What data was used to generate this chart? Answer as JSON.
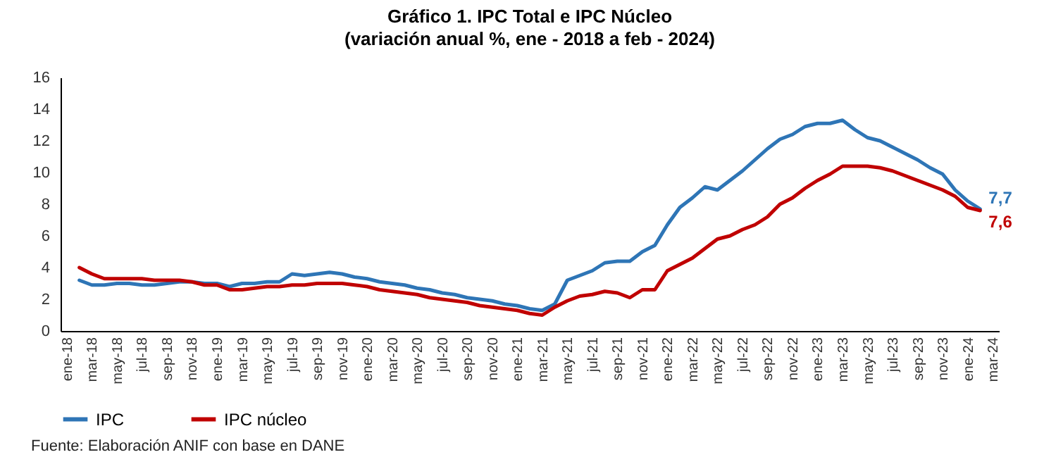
{
  "chart_data": {
    "type": "line",
    "title": "Gráfico 1. IPC Total e IPC Núcleo",
    "subtitle": "(variación anual %, ene - 2018 a feb - 2024)",
    "categories": [
      "ene-18",
      null,
      "mar-18",
      null,
      "may-18",
      null,
      "jul-18",
      null,
      "sep-18",
      null,
      "nov-18",
      null,
      "ene-19",
      null,
      "mar-19",
      null,
      "may-19",
      null,
      "jul-19",
      null,
      "sep-19",
      null,
      "nov-19",
      null,
      "ene-20",
      null,
      "mar-20",
      null,
      "may-20",
      null,
      "jul-20",
      null,
      "sep-20",
      null,
      "nov-20",
      null,
      "ene-21",
      null,
      "mar-21",
      null,
      "may-21",
      null,
      "jul-21",
      null,
      "sep-21",
      null,
      "nov-21",
      null,
      "ene-22",
      null,
      "mar-22",
      null,
      "may-22",
      null,
      "jul-22",
      null,
      "sep-22",
      null,
      "nov-22",
      null,
      "ene-23",
      null,
      "mar-23",
      null,
      "may-23",
      null,
      "jul-23",
      null,
      "sep-23",
      null,
      "nov-23",
      null,
      "ene-24",
      null,
      "mar-24"
    ],
    "series": [
      {
        "name": "IPC",
        "color": "#2e75b6",
        "values": [
          null,
          3.2,
          2.9,
          2.9,
          3.0,
          3.0,
          2.9,
          2.9,
          3.0,
          3.1,
          3.1,
          3.0,
          3.0,
          2.8,
          3.0,
          3.0,
          3.1,
          3.1,
          3.6,
          3.5,
          3.6,
          3.7,
          3.6,
          3.4,
          3.3,
          3.1,
          3.0,
          2.9,
          2.7,
          2.6,
          2.4,
          2.3,
          2.1,
          2.0,
          1.9,
          1.7,
          1.6,
          1.4,
          1.3,
          1.7,
          3.2,
          3.5,
          3.8,
          4.3,
          4.4,
          4.4,
          5.0,
          5.4,
          6.7,
          7.8,
          8.4,
          9.1,
          8.9,
          9.5,
          10.1,
          10.8,
          11.5,
          12.1,
          12.4,
          12.9,
          13.1,
          13.1,
          13.3,
          12.7,
          12.2,
          12.0,
          11.6,
          11.2,
          10.8,
          10.3,
          9.9,
          8.9,
          8.2,
          7.7,
          null
        ],
        "value_labels": [
          null,
          null,
          null,
          null,
          null,
          null,
          null,
          null,
          null,
          null,
          null,
          null,
          null,
          null,
          null,
          null,
          null,
          null,
          null,
          null,
          null,
          null,
          null,
          null,
          null,
          null,
          null,
          null,
          null,
          null,
          null,
          null,
          null,
          null,
          null,
          null,
          null,
          null,
          null,
          null,
          null,
          null,
          null,
          null,
          null,
          null,
          null,
          null,
          null,
          null,
          null,
          null,
          null,
          null,
          null,
          null,
          null,
          null,
          null,
          null,
          null,
          null,
          null,
          null,
          null,
          null,
          null,
          null,
          null,
          null,
          null,
          null,
          null,
          "7,7",
          null
        ]
      },
      {
        "name": "IPC núcleo",
        "color": "#c00000",
        "values": [
          null,
          4.0,
          3.6,
          3.3,
          3.3,
          3.3,
          3.3,
          3.2,
          3.2,
          3.2,
          3.1,
          2.9,
          2.9,
          2.6,
          2.6,
          2.7,
          2.8,
          2.8,
          2.9,
          2.9,
          3.0,
          3.0,
          3.0,
          2.9,
          2.8,
          2.6,
          2.5,
          2.4,
          2.3,
          2.1,
          2.0,
          1.9,
          1.8,
          1.6,
          1.5,
          1.4,
          1.3,
          1.1,
          1.0,
          1.5,
          1.9,
          2.2,
          2.3,
          2.5,
          2.4,
          2.1,
          2.6,
          2.6,
          3.8,
          4.2,
          4.6,
          5.2,
          5.8,
          6.0,
          6.4,
          6.7,
          7.2,
          8.0,
          8.4,
          9.0,
          9.5,
          9.9,
          10.4,
          10.4,
          10.4,
          10.3,
          10.1,
          9.8,
          9.5,
          9.2,
          8.9,
          8.5,
          7.8,
          7.6,
          null
        ],
        "value_labels": [
          null,
          null,
          null,
          null,
          null,
          null,
          null,
          null,
          null,
          null,
          null,
          null,
          null,
          null,
          null,
          null,
          null,
          null,
          null,
          null,
          null,
          null,
          null,
          null,
          null,
          null,
          null,
          null,
          null,
          null,
          null,
          null,
          null,
          null,
          null,
          null,
          null,
          null,
          null,
          null,
          null,
          null,
          null,
          null,
          null,
          null,
          null,
          null,
          null,
          null,
          null,
          null,
          null,
          null,
          null,
          null,
          null,
          null,
          null,
          null,
          null,
          null,
          null,
          null,
          null,
          null,
          null,
          null,
          null,
          null,
          null,
          null,
          null,
          "7,6",
          null
        ]
      }
    ],
    "ylim": [
      0,
      16
    ],
    "yticks": [
      0,
      2,
      4,
      6,
      8,
      10,
      12,
      14,
      16
    ],
    "grid": false,
    "legend": "bottom",
    "line_style": "solid",
    "marker": "none",
    "annotations": [
      "Fuente: Elaboración ANIF con base en DANE"
    ]
  }
}
